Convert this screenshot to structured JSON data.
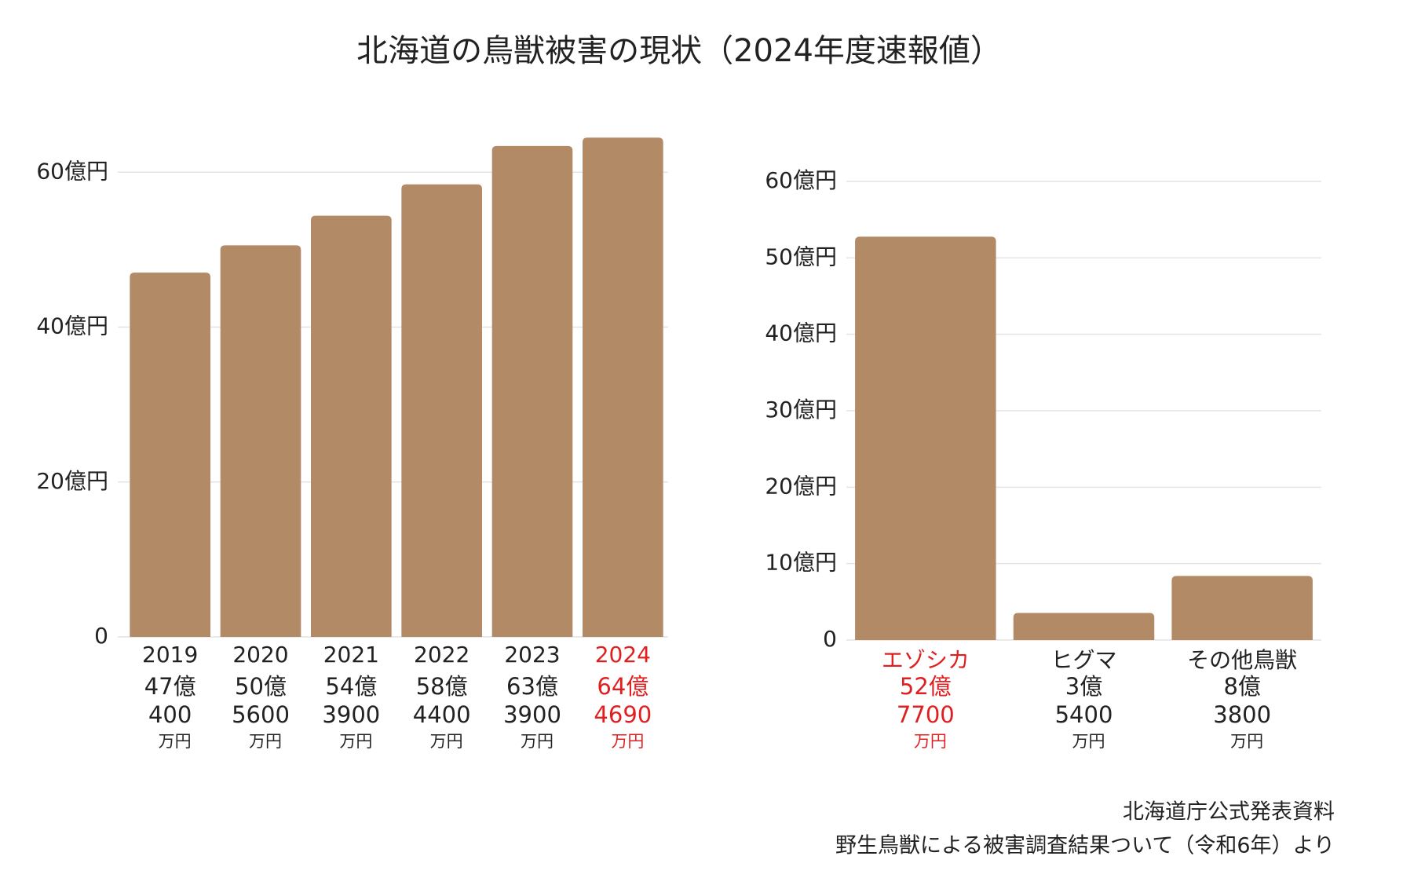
{
  "title": "北海道の鳥獣被害の現状（2024年度速報値）",
  "source": [
    "北海道庁公式発表資料",
    "野生鳥獣による被害調査結果ついて（令和6年）より"
  ],
  "chart_data": [
    {
      "type": "bar",
      "categories": [
        "2019",
        "2020",
        "2021",
        "2022",
        "2023",
        "2024"
      ],
      "values": [
        47.04,
        50.56,
        54.39,
        58.44,
        63.39,
        64.469
      ],
      "value_labels": [
        [
          "47億",
          "400",
          "万円"
        ],
        [
          "50億",
          "5600",
          "万円"
        ],
        [
          "54億",
          "3900",
          "万円"
        ],
        [
          "58億",
          "4400",
          "万円"
        ],
        [
          "63億",
          "3900",
          "万円"
        ],
        [
          "64億",
          "4690",
          "万円"
        ]
      ],
      "label_colors": [
        "#222222",
        "#222222",
        "#222222",
        "#222222",
        "#222222",
        "#e02020"
      ],
      "color": "#b38a66",
      "ylim": [
        0,
        65
      ],
      "yticks": [
        0,
        {
          "value": 20,
          "label": "20億円"
        },
        {
          "value": 40,
          "label": "40億円"
        },
        {
          "value": 60,
          "label": "60億円"
        }
      ],
      "grid": true
    },
    {
      "type": "bar",
      "categories": [
        "エゾシカ",
        "ヒグマ",
        "その他鳥獣"
      ],
      "values": [
        52.77,
        3.54,
        8.38
      ],
      "value_labels": [
        [
          "52億",
          "7700",
          "万円"
        ],
        [
          "3億",
          "5400",
          "万円"
        ],
        [
          "8億",
          "3800",
          "万円"
        ]
      ],
      "label_colors": [
        "#e02020",
        "#222222",
        "#222222"
      ],
      "color": "#b38a66",
      "ylim": [
        0,
        60
      ],
      "yticks": [
        0,
        {
          "value": 10,
          "label": "10億円"
        },
        {
          "value": 20,
          "label": "20億円"
        },
        {
          "value": 30,
          "label": "30億円"
        },
        {
          "value": 40,
          "label": "40億円"
        },
        {
          "value": 50,
          "label": "50億円"
        },
        {
          "value": 60,
          "label": "60億円"
        }
      ],
      "grid": true
    }
  ]
}
